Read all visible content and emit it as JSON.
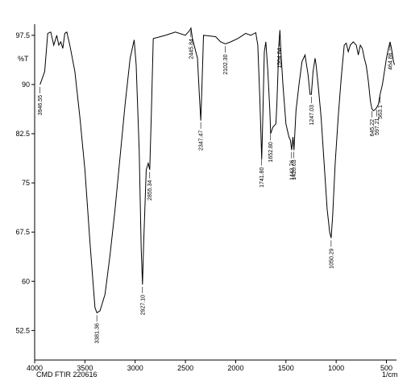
{
  "chart_data": {
    "type": "line",
    "footer": "CMD  FTIR  220616",
    "y_label": "%T",
    "x_label": "1/cm",
    "x": [
      3946,
      3900,
      3870,
      3840,
      3810,
      3780,
      3760,
      3740,
      3720,
      3700,
      3680,
      3650,
      3600,
      3550,
      3500,
      3450,
      3400,
      3381,
      3350,
      3300,
      3250,
      3200,
      3150,
      3100,
      3050,
      3010,
      2990,
      2960,
      2940,
      2927,
      2915,
      2890,
      2870,
      2855,
      2840,
      2820,
      2700,
      2600,
      2500,
      2460,
      2445,
      2430,
      2380,
      2360,
      2347,
      2335,
      2320,
      2200,
      2150,
      2102,
      2050,
      1980,
      1900,
      1850,
      1800,
      1780,
      1760,
      1741,
      1730,
      1715,
      1700,
      1680,
      1660,
      1652,
      1630,
      1600,
      1590,
      1570,
      1560,
      1550,
      1530,
      1500,
      1470,
      1455,
      1443,
      1430,
      1420,
      1400,
      1370,
      1340,
      1310,
      1280,
      1260,
      1247,
      1230,
      1210,
      1200,
      1180,
      1150,
      1120,
      1090,
      1065,
      1050,
      1035,
      1010,
      980,
      950,
      920,
      900,
      880,
      860,
      830,
      800,
      780,
      760,
      740,
      720,
      700,
      680,
      660,
      645,
      630,
      610,
      597,
      580,
      563,
      540,
      520,
      500,
      480,
      464,
      450,
      430,
      420
    ],
    "series": [
      {
        "name": "FTIR",
        "color": "#000000",
        "values": [
          90.0,
          92,
          97.8,
          98,
          96,
          97.5,
          96,
          96.5,
          95.5,
          97.8,
          98,
          96,
          92,
          85,
          77,
          66,
          56,
          55.2,
          55.5,
          58,
          64,
          71,
          79,
          87,
          94,
          96.8,
          93,
          80,
          65,
          59.5,
          66,
          77,
          78,
          77,
          85,
          97,
          97.5,
          98,
          97.5,
          98.2,
          98.6,
          97,
          94,
          88,
          84.5,
          90,
          97.5,
          97.3,
          96.5,
          96.2,
          96.5,
          97,
          97.8,
          97.5,
          97.9,
          96,
          88,
          78.6,
          85,
          95,
          96.5,
          92,
          86,
          82.5,
          83.5,
          84,
          87,
          96,
          98.3,
          95,
          90,
          84,
          82,
          81.5,
          80,
          82,
          80,
          86,
          90,
          93.5,
          94.5,
          91.5,
          88.5,
          88.5,
          92,
          94,
          93,
          90,
          85,
          78,
          71,
          67.5,
          66.6,
          70,
          78,
          85,
          91,
          96,
          96.3,
          95,
          96,
          96.5,
          96,
          94.5,
          96,
          95.5,
          94,
          92.8,
          90.5,
          87.5,
          86.3,
          86,
          86.2,
          86.5,
          87,
          88.5,
          90,
          92,
          94,
          95.5,
          96.5,
          95.5,
          93.5,
          93
        ]
      }
    ],
    "xlim": [
      4000,
      400
    ],
    "ylim": [
      48,
      99.2
    ],
    "xticks": [
      4000,
      3500,
      3000,
      2500,
      2000,
      1500,
      1000,
      500
    ],
    "yticks": [
      97.5,
      90,
      82.5,
      75,
      67.5,
      60,
      52.5
    ],
    "annotations": [
      {
        "x": 3946.55,
        "label": "3946.55"
      },
      {
        "x": 3381.36,
        "label": "3381.36"
      },
      {
        "x": 2927.1,
        "label": "2927.10"
      },
      {
        "x": 2855.34,
        "label": "2855.34"
      },
      {
        "x": 2445.84,
        "label": "2445.84"
      },
      {
        "x": 2347.47,
        "label": "2347.47"
      },
      {
        "x": 2102.3,
        "label": "2102.30"
      },
      {
        "x": 1741.8,
        "label": "1741.80"
      },
      {
        "x": 1652.8,
        "label": "1652.80"
      },
      {
        "x": 1564.84,
        "label": "1564.84"
      },
      {
        "x": 1443.76,
        "label": "1443.76"
      },
      {
        "x": 1420.63,
        "label": "1420.63"
      },
      {
        "x": 1247.03,
        "label": "1247.03"
      },
      {
        "x": 1050.29,
        "label": "1050.29"
      },
      {
        "x": 645.22,
        "label": "645.22"
      },
      {
        "x": 597.21,
        "label": "597.21"
      },
      {
        "x": 563.1,
        "label": "563.1"
      },
      {
        "x": 464.86,
        "label": "464.86"
      }
    ]
  }
}
